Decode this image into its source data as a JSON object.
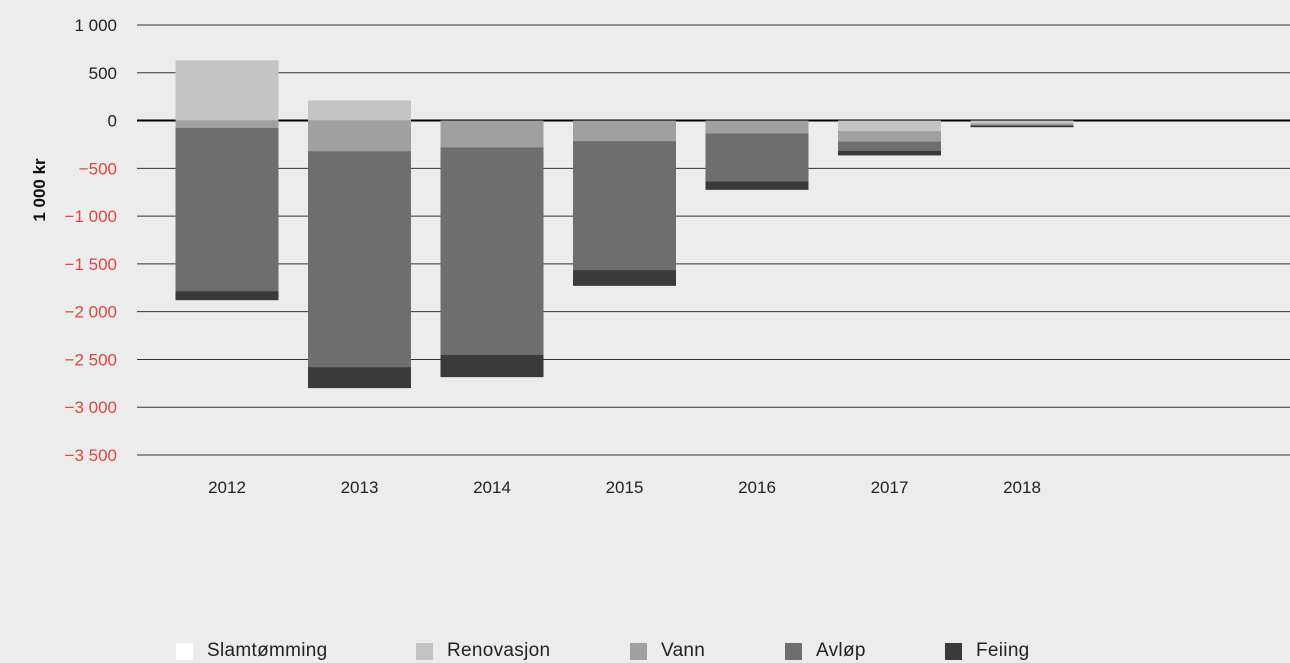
{
  "chart_data": {
    "type": "bar",
    "stacked": true,
    "title": "",
    "xlabel": "",
    "ylabel": "1 000 kr",
    "ylim": [
      -3500,
      1000
    ],
    "y_ticks": [
      {
        "value": 1000,
        "label": "1 000"
      },
      {
        "value": 500,
        "label": "500"
      },
      {
        "value": 0,
        "label": "0"
      },
      {
        "value": -500,
        "label": "−500"
      },
      {
        "value": -1000,
        "label": "−1 000"
      },
      {
        "value": -1500,
        "label": "−1 500"
      },
      {
        "value": -2000,
        "label": "−2 000"
      },
      {
        "value": -2500,
        "label": "−2 500"
      },
      {
        "value": -3000,
        "label": "−3 000"
      },
      {
        "value": -3500,
        "label": "−3 500"
      }
    ],
    "categories": [
      "2012",
      "2013",
      "2014",
      "2015",
      "2016",
      "2017",
      "2018"
    ],
    "series": [
      {
        "name": "Slamtømming",
        "color": "#ffffff",
        "values": [
          0,
          0,
          0,
          0,
          0,
          0,
          0
        ]
      },
      {
        "name": "Renovasjon",
        "color": "#c4c4c4",
        "values": [
          630,
          210,
          0,
          0,
          0,
          -110,
          -30
        ]
      },
      {
        "name": "Vann",
        "color": "#a0a0a0",
        "values": [
          -75,
          -320,
          -280,
          -215,
          -135,
          -110,
          -20
        ]
      },
      {
        "name": "Avløp",
        "color": "#6e6e6e",
        "values": [
          -1710,
          -2260,
          -2170,
          -1350,
          -500,
          -95,
          0
        ]
      },
      {
        "name": "Feiing",
        "color": "#3a3a3a",
        "values": [
          -95,
          -220,
          -235,
          -165,
          -90,
          -50,
          -20
        ]
      }
    ],
    "grid": true,
    "legend_position": "bottom",
    "negative_tick_color": "#d7483e",
    "positive_tick_color": "#222222"
  }
}
